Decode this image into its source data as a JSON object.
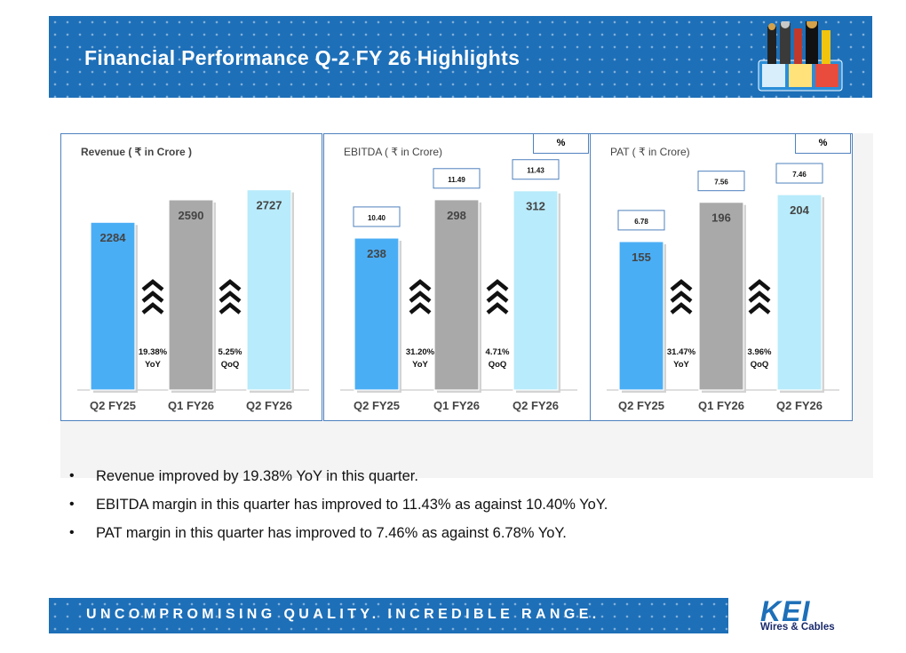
{
  "header": {
    "title": "Financial Performance Q-2 FY 26 Highlights"
  },
  "colors": {
    "brand": "#1d6fb8",
    "bar_blue": "#4aaef5",
    "bar_gray": "#a9a9a9",
    "bar_light": "#b8ebfb",
    "panel_border": "#4f81bd"
  },
  "chart_data": [
    {
      "type": "bar",
      "title": "Revenue ( ₹ in Crore )",
      "categories": [
        "Q2 FY25",
        "Q1 FY26",
        "Q2 FY26"
      ],
      "values": [
        2284,
        2590,
        2727
      ],
      "value_labels": [
        "2284",
        "2590",
        "2727"
      ],
      "margins": [],
      "growth": [
        {
          "value": "19.38%",
          "label": "YoY"
        },
        {
          "value": "5.25%",
          "label": "QoQ"
        }
      ],
      "ylim": [
        0,
        3000
      ]
    },
    {
      "type": "bar",
      "title": "EBITDA ( ₹ in Crore)",
      "pct_label": "%",
      "categories": [
        "Q2 FY25",
        "Q1 FY26",
        "Q2 FY26"
      ],
      "values": [
        238,
        298,
        312
      ],
      "value_labels": [
        "238",
        "298",
        "312"
      ],
      "margins": [
        "10.40",
        "11.49",
        "11.43"
      ],
      "growth": [
        {
          "value": "31.20%",
          "label": "YoY"
        },
        {
          "value": "4.71%",
          "label": "QoQ"
        }
      ],
      "ylim": [
        0,
        345
      ]
    },
    {
      "type": "bar",
      "title": "PAT ( ₹ in Crore)",
      "pct_label": "%",
      "categories": [
        "Q2 FY25",
        "Q1 FY26",
        "Q2 FY26"
      ],
      "values": [
        155,
        196,
        204
      ],
      "value_labels": [
        "155",
        "196",
        "204"
      ],
      "margins": [
        "6.78",
        "7.56",
        "7.46"
      ],
      "growth": [
        {
          "value": "31.47%",
          "label": "YoY"
        },
        {
          "value": "3.96%",
          "label": "QoQ"
        }
      ],
      "ylim": [
        0,
        230
      ]
    }
  ],
  "bullets": [
    "Revenue improved by 19.38% YoY in this quarter.",
    "EBITDA margin in this quarter has improved to 11.43% as against 10.40% YoY.",
    "PAT margin in this quarter has improved to 7.46% as against 6.78% YoY."
  ],
  "footer": {
    "tagline": "UNCOMPROMISING QUALITY. INCREDIBLE RANGE."
  },
  "logo": {
    "name": "KEI",
    "subtitle": "Wires & Cables"
  }
}
